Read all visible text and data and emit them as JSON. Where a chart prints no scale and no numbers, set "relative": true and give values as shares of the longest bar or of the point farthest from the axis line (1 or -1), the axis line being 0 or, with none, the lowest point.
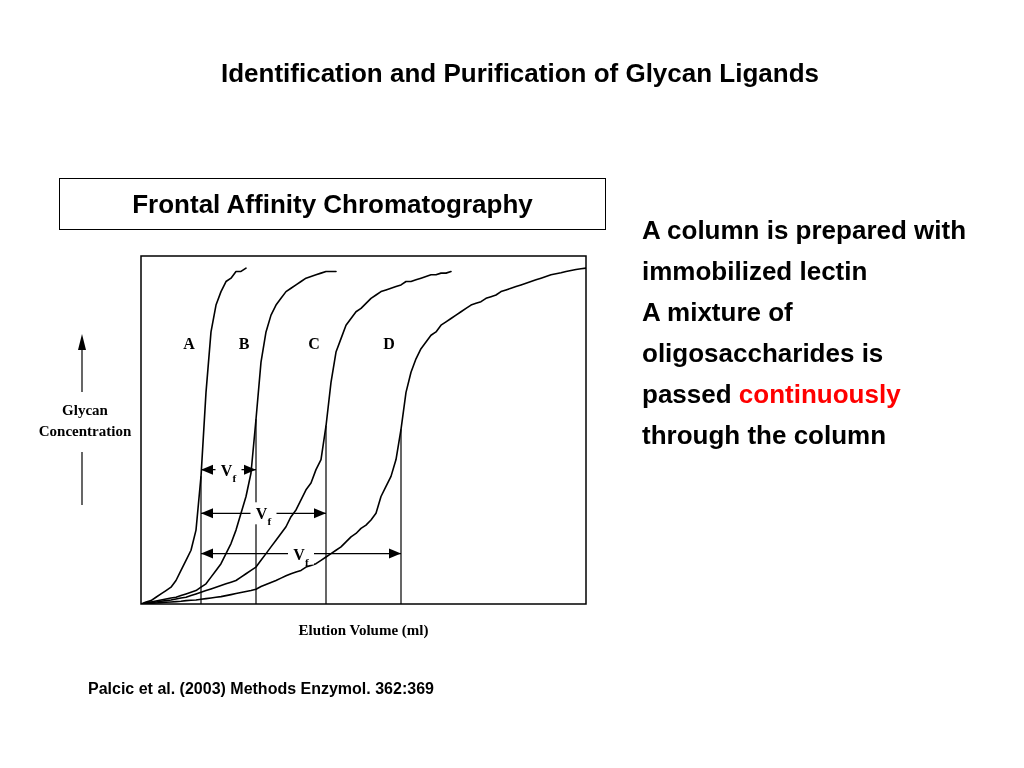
{
  "chart_data": {
    "type": "line",
    "title": "Identification and Purification of Glycan Ligands",
    "subtitle": "Frontal Affinity Chromatography",
    "xlabel": "Elution Volume (ml)",
    "ylabel": "Glycan Concentration",
    "relative": true,
    "tick_labels": false,
    "grid": false,
    "legend": false,
    "marker": "none",
    "line_style": "solid",
    "annotations": [
      "A column is prepared with immobilized lectin",
      "A mixture of oligosaccharides is passed",
      "continuously",
      "through the column",
      "Palcic et al. (2003) Methods Enzymol. 362:369",
      "V$_{f}$",
      "V$_{f}$",
      "V$_{f}$"
    ],
    "categories": [
      null,
      null,
      null,
      null,
      null,
      null,
      null,
      null,
      null,
      null,
      null,
      null,
      null,
      null,
      null,
      null,
      null,
      null,
      null,
      null,
      null,
      null,
      null,
      null,
      null,
      null,
      null,
      null,
      null,
      null,
      null,
      null,
      null,
      null,
      null,
      null,
      null,
      null,
      null,
      null,
      null,
      null,
      null,
      null,
      null,
      null,
      null,
      null,
      null,
      null,
      null,
      null,
      null,
      null,
      null,
      null,
      null,
      null,
      null,
      null,
      null,
      null,
      null,
      null,
      null,
      null,
      null,
      null,
      null,
      null,
      null,
      null,
      null,
      null,
      null,
      null,
      null,
      null,
      null,
      null,
      null,
      null,
      null,
      null,
      null,
      null,
      null,
      null,
      null,
      null
    ],
    "series": [
      {
        "name": "A",
        "color": "#000000",
        "values": [
          0,
          0.006,
          0.01,
          0.02,
          0.03,
          0.04,
          0.05,
          0.07,
          0.1,
          0.13,
          0.16,
          0.22,
          0.38,
          0.63,
          0.81,
          0.89,
          0.93,
          0.96,
          0.97,
          0.99,
          0.99,
          1,
          null,
          null,
          null,
          null,
          null,
          null,
          null,
          null,
          null,
          null,
          null,
          null,
          null,
          null,
          null,
          null,
          null,
          null,
          null,
          null,
          null,
          null,
          null,
          null,
          null,
          null,
          null,
          null,
          null,
          null,
          null,
          null,
          null,
          null,
          null,
          null,
          null,
          null,
          null,
          null,
          null,
          null,
          null,
          null,
          null,
          null,
          null,
          null,
          null,
          null,
          null,
          null,
          null,
          null,
          null,
          null,
          null,
          null,
          null,
          null,
          null,
          null,
          null,
          null,
          null,
          null,
          null,
          null
        ]
      },
      {
        "name": "B",
        "color": "#000000",
        "values": [
          0,
          0.003,
          0.006,
          0.009,
          0.012,
          0.015,
          0.018,
          0.02,
          0.025,
          0.03,
          0.035,
          0.04,
          0.05,
          0.06,
          0.08,
          0.1,
          0.12,
          0.15,
          0.18,
          0.22,
          0.27,
          0.32,
          0.39,
          0.55,
          0.72,
          0.81,
          0.86,
          0.89,
          0.91,
          0.93,
          0.94,
          0.95,
          0.96,
          0.97,
          0.975,
          0.98,
          0.985,
          0.99,
          0.99,
          0.99,
          null,
          null,
          null,
          null,
          null,
          null,
          null,
          null,
          null,
          null,
          null,
          null,
          null,
          null,
          null,
          null,
          null,
          null,
          null,
          null,
          null,
          null,
          null,
          null,
          null,
          null,
          null,
          null,
          null,
          null,
          null,
          null,
          null,
          null,
          null,
          null,
          null,
          null,
          null,
          null,
          null,
          null,
          null,
          null,
          null,
          null,
          null,
          null,
          null,
          null
        ]
      },
      {
        "name": "C",
        "color": "#000000",
        "values": [
          0,
          0.002,
          0.004,
          0.006,
          0.008,
          0.01,
          0.012,
          0.015,
          0.018,
          0.02,
          0.025,
          0.03,
          0.035,
          0.04,
          0.045,
          0.05,
          0.055,
          0.06,
          0.065,
          0.07,
          0.08,
          0.09,
          0.1,
          0.11,
          0.13,
          0.15,
          0.17,
          0.19,
          0.21,
          0.23,
          0.26,
          0.28,
          0.31,
          0.34,
          0.36,
          0.4,
          0.43,
          0.53,
          0.66,
          0.75,
          0.79,
          0.83,
          0.85,
          0.87,
          0.88,
          0.895,
          0.91,
          0.92,
          0.93,
          0.935,
          0.94,
          0.945,
          0.95,
          0.96,
          0.96,
          0.965,
          0.97,
          0.975,
          0.98,
          0.98,
          0.985,
          0.985,
          0.99,
          null,
          null,
          null,
          null,
          null,
          null,
          null,
          null,
          null,
          null,
          null,
          null,
          null,
          null,
          null,
          null,
          null,
          null,
          null,
          null,
          null,
          null,
          null,
          null,
          null,
          null,
          null
        ]
      },
      {
        "name": "D",
        "color": "#000000",
        "values": [
          0,
          0.001,
          0.002,
          0.003,
          0.004,
          0.005,
          0.006,
          0.007,
          0.008,
          0.01,
          0.011,
          0.012,
          0.014,
          0.016,
          0.018,
          0.02,
          0.022,
          0.025,
          0.028,
          0.031,
          0.034,
          0.037,
          0.04,
          0.044,
          0.052,
          0.058,
          0.064,
          0.07,
          0.077,
          0.084,
          0.09,
          0.095,
          0.1,
          0.11,
          0.115,
          0.12,
          0.13,
          0.14,
          0.15,
          0.16,
          0.17,
          0.185,
          0.2,
          0.21,
          0.225,
          0.235,
          0.25,
          0.27,
          0.32,
          0.35,
          0.38,
          0.43,
          0.52,
          0.63,
          0.69,
          0.73,
          0.76,
          0.78,
          0.8,
          0.81,
          0.83,
          0.84,
          0.85,
          0.86,
          0.87,
          0.88,
          0.89,
          0.895,
          0.9,
          0.91,
          0.915,
          0.92,
          0.93,
          0.935,
          0.94,
          0.945,
          0.95,
          0.955,
          0.96,
          0.965,
          0.97,
          0.975,
          0.98,
          0.983,
          0.986,
          0.99,
          0.993,
          0.996,
          0.998,
          1
        ]
      }
    ]
  }
}
